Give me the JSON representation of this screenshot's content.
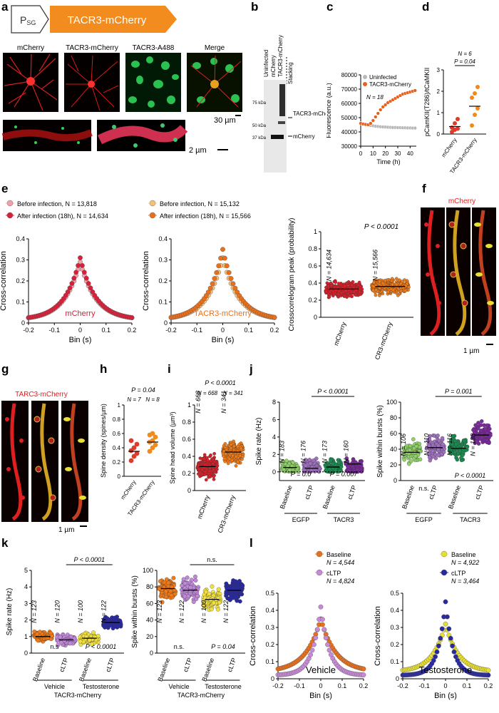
{
  "letters": {
    "a": "a",
    "b": "b",
    "c": "c",
    "d": "d",
    "e": "e",
    "f": "f",
    "g": "g",
    "h": "h",
    "i": "i",
    "j": "j",
    "k": "k",
    "l": "l"
  },
  "panel_a": {
    "promoter": "P",
    "promoter_sub": "SG",
    "construct": "TACR3-mCherry",
    "image_titles": [
      "mCherry",
      "TACR3-mCherry",
      "TACR3-A488",
      "Merge"
    ],
    "scale_1": "30 µm",
    "scale_2": "2 µm",
    "colors": {
      "construct": "#f28c1e",
      "red": "#e02020",
      "green": "#22c04a"
    }
  },
  "panel_b": {
    "lanes": [
      "Uninfected",
      "mCherry",
      "TACR3-mCherry"
    ],
    "stacking": "Stacking",
    "markers": [
      "75 kDa",
      "50 kDa",
      "37 kDa"
    ],
    "bands": [
      "TACR3-mCherry",
      "mCherry"
    ]
  },
  "panel_f": {
    "title": "mCherry",
    "scale": "1 µm"
  },
  "panel_g": {
    "title": "TARC3-mCherry",
    "scale": "1 µm"
  },
  "chart_data": [
    {
      "id": "c",
      "type": "line",
      "xlabel": "Time (h)",
      "ylabel": "Fluorescence (a.u.)",
      "xlim": [
        0,
        45
      ],
      "ylim": [
        30000,
        80000
      ],
      "xticks": [
        0,
        10,
        20,
        30,
        40
      ],
      "yticks": [
        30000,
        40000,
        50000,
        60000,
        70000,
        80000
      ],
      "annotation": "N = 18",
      "legend": "top-left",
      "series": [
        {
          "name": "Uninfected",
          "color": "#b8b8b8",
          "x": [
            0,
            2,
            4,
            6,
            8,
            10,
            12,
            14,
            16,
            18,
            20,
            22,
            24,
            26,
            28,
            30,
            32,
            34,
            36,
            38,
            40,
            42,
            44
          ],
          "y": [
            46000,
            45500,
            45000,
            44800,
            44500,
            44300,
            44000,
            43800,
            43600,
            43500,
            43400,
            43300,
            43200,
            43100,
            43100,
            43000,
            43000,
            42900,
            42900,
            42800,
            42800,
            42700,
            42700
          ]
        },
        {
          "name": "TACR3-mCherry",
          "color": "#e8601c",
          "x": [
            0,
            2,
            4,
            6,
            8,
            10,
            12,
            14,
            16,
            18,
            20,
            22,
            24,
            26,
            28,
            30,
            32,
            34,
            36,
            38,
            40,
            42,
            44
          ],
          "y": [
            46000,
            45500,
            45200,
            45000,
            46000,
            48000,
            50500,
            53000,
            55500,
            57500,
            59000,
            60500,
            61500,
            62500,
            63500,
            64500,
            65500,
            66500,
            67000,
            67500,
            68000,
            68500,
            69000
          ]
        }
      ]
    },
    {
      "id": "d",
      "type": "scatter",
      "categories": [
        "mCherry",
        "TACR3-mCherry"
      ],
      "ylabel": "pCamKII(T286)/tCaMKII",
      "ylim": [
        0,
        3
      ],
      "yticks": [
        0,
        1,
        2,
        3
      ],
      "annotations": [
        "N = 6",
        "P = 0.04"
      ],
      "series": [
        {
          "name": "mCherry",
          "color": "#e03a2a",
          "values": [
            0.1,
            0.2,
            0.25,
            0.3,
            0.5,
            0.7
          ],
          "mean": 0.35
        },
        {
          "name": "TACR3-mCherry",
          "color": "#f08a1c",
          "values": [
            0.4,
            0.9,
            1.2,
            1.7,
            1.9,
            2.2
          ],
          "mean": 1.3
        }
      ]
    },
    {
      "id": "e1",
      "type": "scatter",
      "xlabel": "Bin (s)",
      "ylabel": "Cross-correlation",
      "xlim": [
        -0.2,
        0.2
      ],
      "ylim": [
        0,
        0.4
      ],
      "xticks": [
        -0.2,
        -0.1,
        0.0,
        0.1,
        0.2
      ],
      "yticks": [
        0,
        0.1,
        0.2,
        0.3,
        0.4
      ],
      "annotation": "mCherry",
      "series": [
        {
          "name": "Before infection, N = 13,818",
          "color": "#f0a0a8",
          "peak": 0.29,
          "base": 0.015,
          "width": 0.06
        },
        {
          "name": "After infection (18h), N = 14,634",
          "color": "#d8203a",
          "peak": 0.31,
          "base": 0.015,
          "width": 0.06
        }
      ]
    },
    {
      "id": "e2",
      "type": "scatter",
      "xlabel": "Bin (s)",
      "ylabel": "Cross-correlation",
      "xlim": [
        -0.2,
        0.2
      ],
      "ylim": [
        0,
        0.4
      ],
      "xticks": [
        -0.2,
        -0.1,
        0.0,
        0.1,
        0.2
      ],
      "yticks": [
        0,
        0.1,
        0.2,
        0.3,
        0.4
      ],
      "annotation": "TACR3-mCherry",
      "series": [
        {
          "name": "Before infection, N = 15,132",
          "color": "#f5c078",
          "peak": 0.31,
          "base": 0.015,
          "width": 0.06
        },
        {
          "name": "After infection (18h), N = 15,566",
          "color": "#e8701c",
          "peak": 0.35,
          "base": 0.015,
          "width": 0.06
        }
      ]
    },
    {
      "id": "e3",
      "type": "scatter",
      "categories": [
        "mCherry",
        "TACR3-mCherry"
      ],
      "ylabel": "Crosscorrelogram peak (probability)",
      "ylim": [
        0,
        1
      ],
      "yticks": [
        0,
        0.2,
        0.4,
        0.6,
        0.8,
        1.0
      ],
      "annotation": "P < 0.0001",
      "groups": [
        {
          "label": "N = 14,634",
          "color": "#d8202a",
          "mean": 0.33
        },
        {
          "label": "N = 15,566",
          "color": "#ee7a18",
          "mean": 0.36
        }
      ]
    },
    {
      "id": "h",
      "type": "scatter",
      "categories": [
        "mCherry",
        "TACR3-mCherry"
      ],
      "ylabel": "Spine density (spines/µm)",
      "ylim": [
        0,
        1
      ],
      "yticks": [
        0,
        0.2,
        0.4,
        0.6,
        0.8,
        1.0
      ],
      "annotations": [
        "P = 0.04",
        "N = 7",
        "N = 8"
      ],
      "series": [
        {
          "name": "mCherry",
          "color": "#e03a2a",
          "values": [
            0.22,
            0.28,
            0.32,
            0.36,
            0.4,
            0.45,
            0.5
          ],
          "mean": 0.35
        },
        {
          "name": "TACR3-mCherry",
          "color": "#f08a1c",
          "values": [
            0.35,
            0.4,
            0.44,
            0.48,
            0.5,
            0.55,
            0.58,
            0.6
          ],
          "mean": 0.48
        }
      ]
    },
    {
      "id": "i",
      "type": "scatter",
      "categories": [
        "mCherry",
        "TACR3-mCherry"
      ],
      "ylabel": "Spine head volume (µm³)",
      "ylim": [
        0,
        1
      ],
      "yticks": [
        0,
        0.2,
        0.4,
        0.6,
        0.8,
        1.0
      ],
      "annotations": [
        "P < 0.0001",
        "N = 668",
        "N = 341"
      ],
      "groups": [
        {
          "label": "N = 668",
          "color": "#d8202a",
          "mean": 0.28
        },
        {
          "label": "N = 341",
          "color": "#ee7a18",
          "mean": 0.45
        }
      ]
    },
    {
      "id": "j1",
      "type": "scatter",
      "categories": [
        "Baseline",
        "cLTP",
        "Baseline",
        "cLTP"
      ],
      "group_labels": [
        "EGFP",
        "TACR3"
      ],
      "ylabel": "Spike rate (Hz)",
      "ylim": [
        -1,
        8
      ],
      "yticks": [
        0,
        2,
        4,
        6,
        8
      ],
      "annotations": [
        "P < 0.0001",
        "P = 0.0",
        "P = 0.007"
      ],
      "groups": [
        {
          "label": "N = 183",
          "color": "#8fd068",
          "mean": 0.5
        },
        {
          "label": "N = 176",
          "color": "#a070c0",
          "mean": 0.4
        },
        {
          "label": "N = 173",
          "color": "#1a8a50",
          "mean": 0.55
        },
        {
          "label": "N = 160",
          "color": "#7a2a9a",
          "mean": 0.9
        }
      ]
    },
    {
      "id": "j2",
      "type": "scatter",
      "categories": [
        "Baseline",
        "cLTP",
        "Baseline",
        "cLTP"
      ],
      "group_labels": [
        "EGFP",
        "TACR3"
      ],
      "ylabel": "Spike within bursts (%)",
      "ylim": [
        0,
        100
      ],
      "yticks": [
        0,
        20,
        40,
        60,
        80,
        100
      ],
      "annotations": [
        "P = 0.001",
        "n.s.",
        "P < 0.0001"
      ],
      "groups": [
        {
          "label": "N = 106",
          "color": "#8fd068",
          "mean": 36
        },
        {
          "label": "N = 110",
          "color": "#a070c0",
          "mean": 42
        },
        {
          "label": "N = 116",
          "color": "#1a8a50",
          "mean": 41
        },
        {
          "label": "N = 138",
          "color": "#7a2a9a",
          "mean": 58
        }
      ]
    },
    {
      "id": "k1",
      "type": "scatter",
      "categories": [
        "Baseline",
        "cLTP",
        "Baseline",
        "cLTP"
      ],
      "group_labels": [
        "Vehicle",
        "Testosterone"
      ],
      "super_label": "TACR3-mCherry",
      "ylabel": "Spike rate (Hz)",
      "ylim": [
        0,
        5
      ],
      "yticks": [
        0,
        1,
        2,
        3,
        4,
        5
      ],
      "annotations": [
        "P < 0.0001",
        "n.s",
        "P < 0.0001"
      ],
      "groups": [
        {
          "label": "N = 123",
          "color": "#f07a18",
          "mean": 1.0
        },
        {
          "label": "N = 120",
          "color": "#c088d8",
          "mean": 0.8
        },
        {
          "label": "N = 100",
          "color": "#f0e040",
          "mean": 0.9
        },
        {
          "label": "N = 122",
          "color": "#2a2aa0",
          "mean": 1.85
        }
      ]
    },
    {
      "id": "k2",
      "type": "scatter",
      "categories": [
        "Baseline",
        "cLTP",
        "Baseline",
        "cLTP"
      ],
      "group_labels": [
        "Vehicle",
        "Testosterone"
      ],
      "super_label": "TACR3-mCherry",
      "ylabel": "Spike within bursts (%)",
      "ylim": [
        0,
        100
      ],
      "yticks": [
        0,
        20,
        40,
        60,
        80,
        100
      ],
      "annotations": [
        "n.s.",
        "n.s.",
        "P = 0.04"
      ],
      "groups": [
        {
          "label": "N = 123",
          "color": "#f07a18",
          "mean": 78
        },
        {
          "label": "N = 122",
          "color": "#c088d8",
          "mean": 76
        },
        {
          "label": "N = 100",
          "color": "#f0e040",
          "mean": 65
        },
        {
          "label": "N = 122",
          "color": "#2a2aa0",
          "mean": 76
        }
      ]
    },
    {
      "id": "l1",
      "type": "scatter",
      "xlabel": "Bin (s)",
      "ylabel": "Cross-correlation",
      "xlim": [
        -0.2,
        0.2
      ],
      "ylim": [
        0,
        0.5
      ],
      "xticks": [
        -0.2,
        -0.1,
        0.0,
        0.1,
        0.2
      ],
      "yticks": [
        0,
        0.1,
        0.2,
        0.3,
        0.4,
        0.5
      ],
      "annotation": "Vehicle",
      "series": [
        {
          "name": "Baseline",
          "n": "N = 4,544",
          "color": "#e8701c",
          "peak": 0.35,
          "base": 0.04,
          "width": 0.07
        },
        {
          "name": "cLTP",
          "n": "N = 4,824",
          "color": "#c88ad8",
          "peak": 0.42,
          "base": 0.02,
          "width": 0.04
        }
      ]
    },
    {
      "id": "l2",
      "type": "scatter",
      "xlabel": "Bin (s)",
      "ylabel": "Cross-correlation",
      "xlim": [
        -0.2,
        0.2
      ],
      "ylim": [
        0,
        0.5
      ],
      "xticks": [
        -0.2,
        -0.1,
        0.0,
        0.1,
        0.2
      ],
      "yticks": [
        0,
        0.1,
        0.2,
        0.3,
        0.4,
        0.5
      ],
      "annotation": "Testosterone",
      "series": [
        {
          "name": "Baseline",
          "n": "N = 4,922",
          "color": "#e8e030",
          "peak": 0.32,
          "base": 0.04,
          "width": 0.06
        },
        {
          "name": "cLTP",
          "n": "N = 3,464",
          "color": "#2a2aa0",
          "peak": 0.45,
          "base": 0.02,
          "width": 0.035
        }
      ]
    }
  ]
}
